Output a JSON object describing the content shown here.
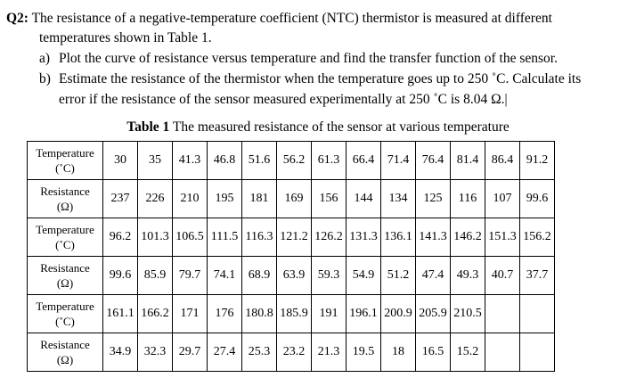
{
  "question": {
    "label": "Q2:",
    "text_line1": "The resistance of a negative-temperature coefficient (NTC) thermistor is measured at different",
    "text_line2": "temperatures shown in Table 1.",
    "parts": [
      {
        "marker": "a)",
        "text": "Plot the curve of resistance versus temperature and find the transfer function of the sensor."
      },
      {
        "marker": "b)",
        "text": "Estimate the resistance of the thermistor when the temperature goes up to 250 ˚C. Calculate its",
        "text2": "error if the resistance of the sensor measured experimentally at 250 ˚C is 8.04 Ω.|"
      }
    ]
  },
  "table": {
    "caption_bold": "Table 1",
    "caption_text": " The measured resistance of the sensor at various temperature",
    "row_headers": {
      "temperature": [
        "Temperature",
        "(˚C)"
      ],
      "resistance": [
        "Resistance",
        "(Ω)"
      ]
    },
    "blocks": [
      {
        "temperature": [
          "30",
          "35",
          "41.3",
          "46.8",
          "51.6",
          "56.2",
          "61.3",
          "66.4",
          "71.4",
          "76.4",
          "81.4",
          "86.4",
          "91.2"
        ],
        "resistance": [
          "237",
          "226",
          "210",
          "195",
          "181",
          "169",
          "156",
          "144",
          "134",
          "125",
          "116",
          "107",
          "99.6"
        ]
      },
      {
        "temperature": [
          "96.2",
          "101.3",
          "106.5",
          "111.5",
          "116.3",
          "121.2",
          "126.2",
          "131.3",
          "136.1",
          "141.3",
          "146.2",
          "151.3",
          "156.2"
        ],
        "resistance": [
          "99.6",
          "85.9",
          "79.7",
          "74.1",
          "68.9",
          "63.9",
          "59.3",
          "54.9",
          "51.2",
          "47.4",
          "49.3",
          "40.7",
          "37.7"
        ]
      },
      {
        "temperature": [
          "161.1",
          "166.2",
          "171",
          "176",
          "180.8",
          "185.9",
          "191",
          "196.1",
          "200.9",
          "205.9",
          "210.5",
          "",
          ""
        ],
        "resistance": [
          "34.9",
          "32.3",
          "29.7",
          "27.4",
          "25.3",
          "23.2",
          "21.3",
          "19.5",
          "18",
          "16.5",
          "15.2",
          "",
          ""
        ]
      }
    ]
  }
}
